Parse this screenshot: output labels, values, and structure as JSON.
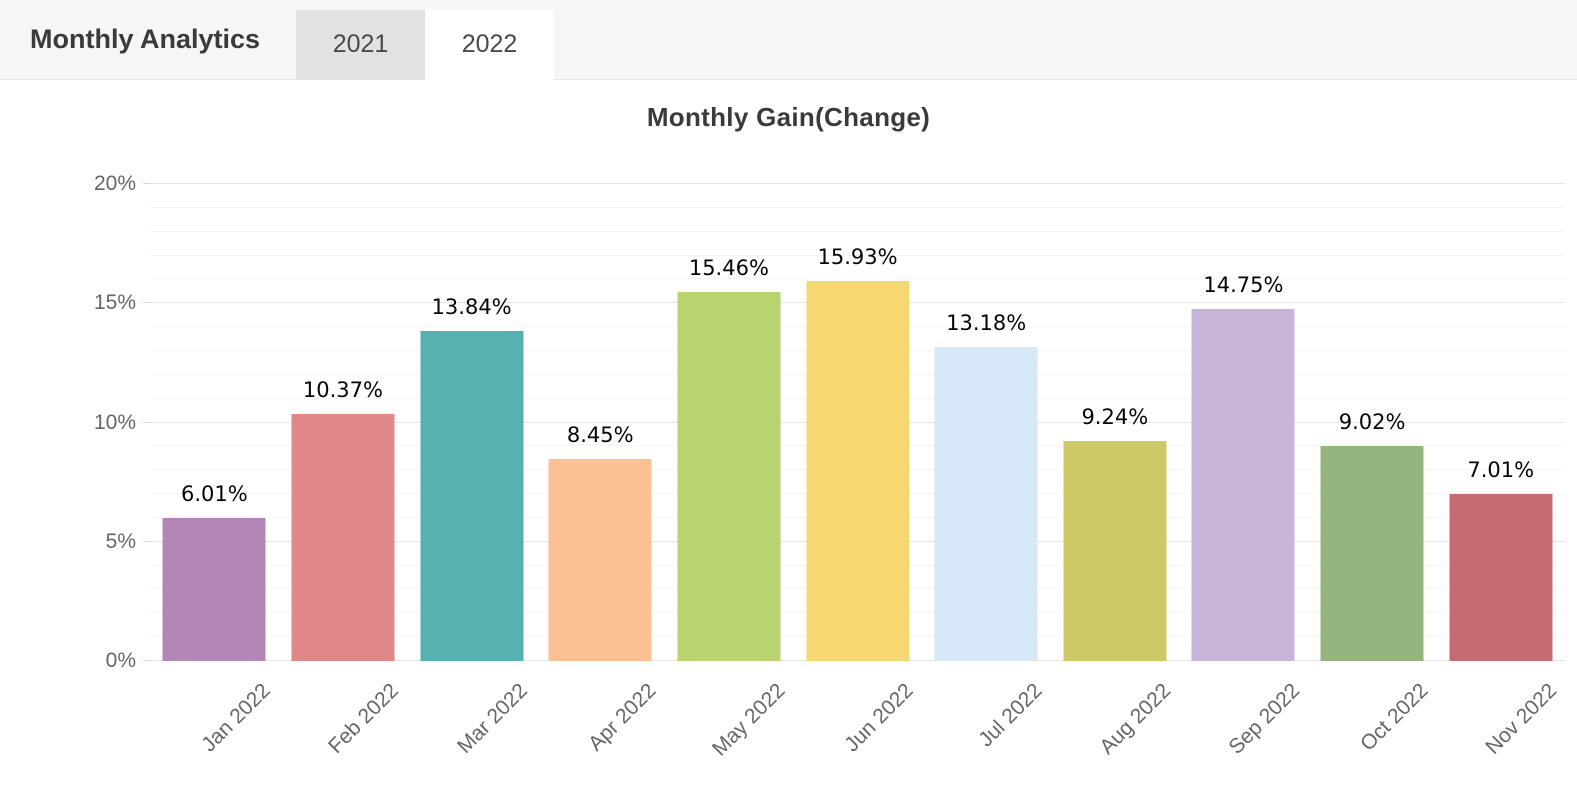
{
  "header": {
    "title": "Monthly Analytics",
    "tabs": [
      {
        "label": "2021",
        "active": false
      },
      {
        "label": "2022",
        "active": true
      }
    ]
  },
  "chart_data": {
    "type": "bar",
    "title": "Monthly Gain(Change)",
    "categories": [
      "Jan 2022",
      "Feb 2022",
      "Mar 2022",
      "Apr 2022",
      "May 2022",
      "Jun 2022",
      "Jul 2022",
      "Aug 2022",
      "Sep 2022",
      "Oct 2022",
      "Nov 2022"
    ],
    "values": [
      6.01,
      10.37,
      13.84,
      8.45,
      15.46,
      15.93,
      13.18,
      9.24,
      14.75,
      9.02,
      7.01
    ],
    "labels": [
      "6.01%",
      "10.37%",
      "13.84%",
      "8.45%",
      "15.46%",
      "15.93%",
      "13.18%",
      "9.24%",
      "14.75%",
      "9.02%",
      "7.01%"
    ],
    "colors": [
      "#b287b8",
      "#e08888",
      "#57b1b1",
      "#fdc092",
      "#b9d36f",
      "#f5d871",
      "#d7e8f8",
      "#cdc967",
      "#c7b6da",
      "#95b57c",
      "#c56b72"
    ],
    "xlabel": "",
    "ylabel": "",
    "ylim": [
      0,
      20
    ],
    "yticks": [
      0,
      5,
      10,
      15,
      20
    ],
    "ytick_suffix": "%",
    "yminor_step": 1,
    "grid": true,
    "legend": "none"
  }
}
